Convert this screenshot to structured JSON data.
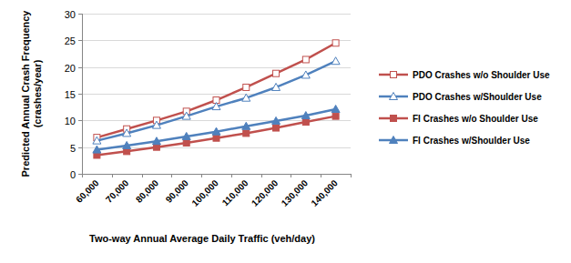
{
  "chart_data": {
    "type": "line",
    "x_label": "Two-way Annual Average Daily Traffic (veh/day)",
    "y_label": "Predicted Annual Crash Frequency (crashes/year)",
    "categories": [
      "60,000",
      "70,000",
      "80,000",
      "90,000",
      "100,000",
      "110,000",
      "120,000",
      "130,000",
      "140,000"
    ],
    "series": [
      {
        "name": "PDO Crashes w/o Shoulder Use",
        "color": "#c0504d",
        "marker": "open-square",
        "values": [
          6.8,
          8.4,
          10.0,
          11.7,
          13.8,
          16.2,
          18.8,
          21.4,
          24.5
        ]
      },
      {
        "name": "PDO Crashes w/Shoulder Use",
        "color": "#4f81bd",
        "marker": "open-triangle",
        "values": [
          6.2,
          7.6,
          9.1,
          10.8,
          12.6,
          14.2,
          16.2,
          18.5,
          21.1
        ]
      },
      {
        "name": "FI Crashes w/o Shoulder Use",
        "color": "#c0504d",
        "marker": "square",
        "values": [
          3.5,
          4.2,
          5.0,
          5.8,
          6.7,
          7.6,
          8.6,
          9.7,
          10.8
        ]
      },
      {
        "name": "FI Crashes w/Shoulder Use",
        "color": "#4f81bd",
        "marker": "triangle",
        "values": [
          4.5,
          5.3,
          6.1,
          7.0,
          7.9,
          8.9,
          9.9,
          10.9,
          12.1
        ]
      }
    ],
    "ylim": [
      0,
      30
    ],
    "yticks": [
      0,
      5,
      10,
      15,
      20,
      25,
      30
    ],
    "grid": true,
    "legend": "right"
  }
}
